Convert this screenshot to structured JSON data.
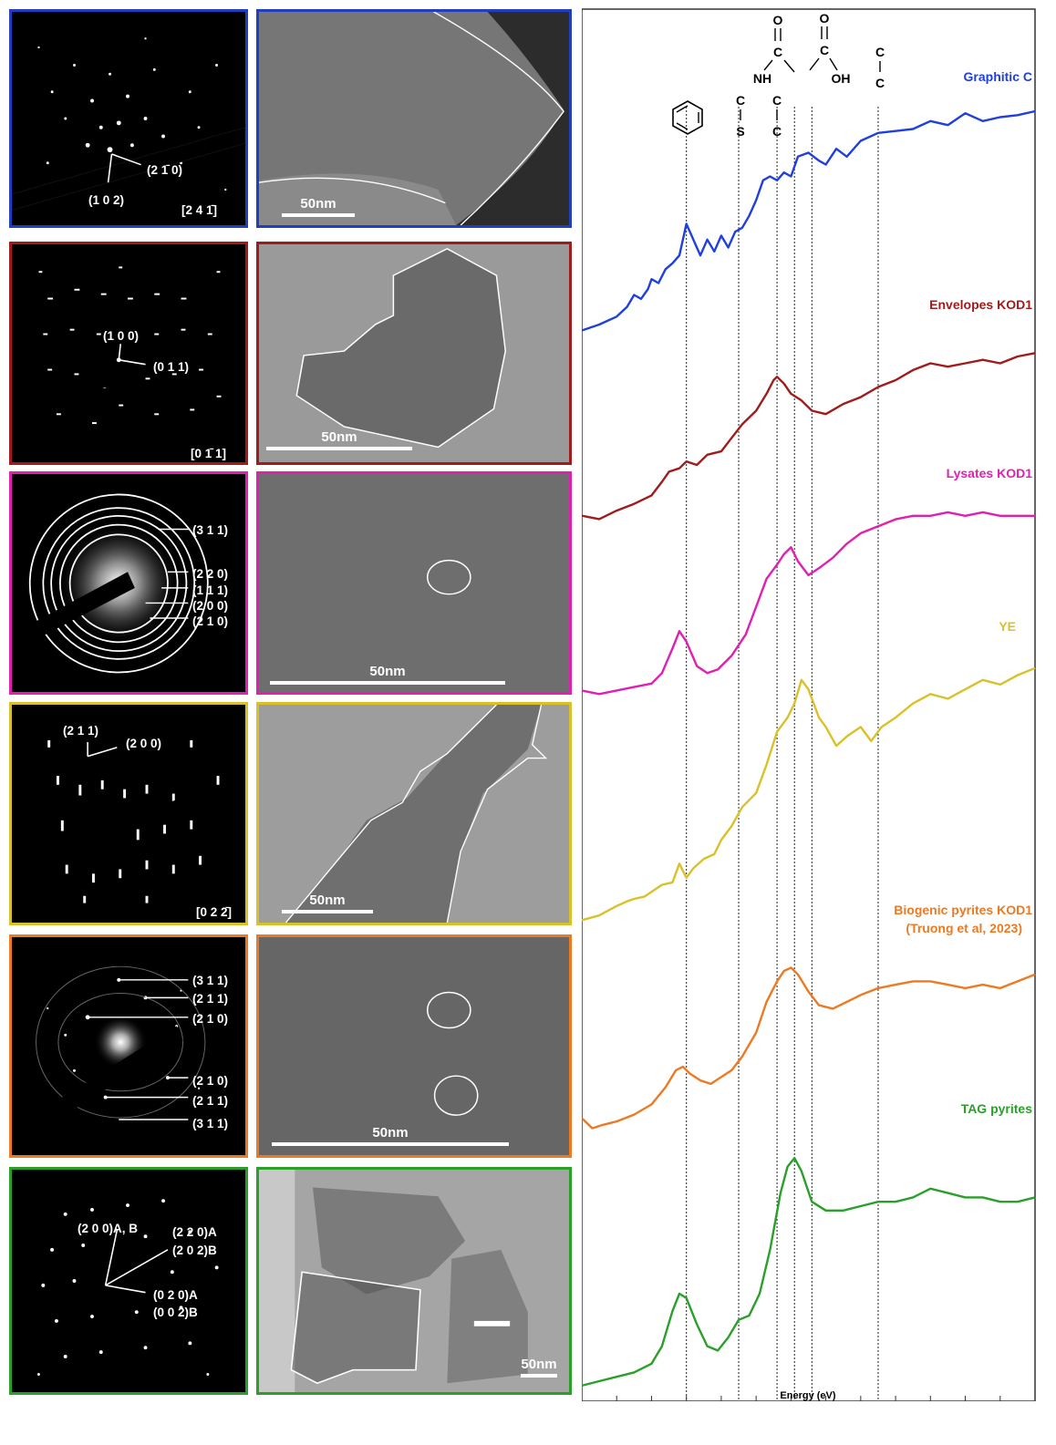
{
  "rows": [
    {
      "color": "#1f3fbf",
      "saed_labels": [
        "(2 1̄ 0)",
        "(1 0 2)"
      ],
      "zone_axis": "[2 4 1̄]",
      "scale_label": "50nm"
    },
    {
      "color": "#a01c1c",
      "saed_labels": [
        "(1 0 0)",
        "(0 1 1)"
      ],
      "zone_axis": "[0 1̄ 1]",
      "scale_label": "50nm"
    },
    {
      "color": "#e020b0",
      "saed_labels": [
        "(3 1 1)",
        "(2 2 0)",
        "(1 1 1)",
        "(2 0 0)",
        "(2 1 0)"
      ],
      "zone_axis": "",
      "scale_label": "50nm"
    },
    {
      "color": "#d9c12a",
      "saed_labels": [
        "(2 1 1)",
        "(2 0 0)"
      ],
      "zone_axis": "[0 2 2̄]",
      "scale_label": "50nm"
    },
    {
      "color": "#ec7a23",
      "saed_labels": [
        "(3 1 1)",
        "(2 1 1)",
        "(2 1 0)",
        "(2 1 0)",
        "(2 1 1)",
        "(3 1 1)"
      ],
      "zone_axis": "",
      "scale_label": "50nm"
    },
    {
      "color": "#2aa02a",
      "saed_labels": [
        "(2 0 0)A, B",
        "(2 2 0)A",
        "(2 0 2)B",
        "(0 2 0)A",
        "(0 0 2)B"
      ],
      "zone_axis": "",
      "scale_label": "50nm"
    }
  ],
  "chart_data": {
    "type": "line",
    "xlabel": "Energy (eV)",
    "xlim": [
      282,
      295
    ],
    "x_ticks": [
      "282",
      "283",
      "284",
      "285",
      "286",
      "287",
      "288",
      "289",
      "290",
      "291",
      "292",
      "293",
      "294",
      "295"
    ],
    "reference_lines_eV": [
      285.0,
      286.5,
      287.6,
      288.1,
      288.6,
      290.5
    ],
    "functional_groups": {
      "c_s": [
        "C",
        "S"
      ],
      "c_c": [
        "C",
        "C"
      ],
      "amide": [
        "O",
        "C",
        "NH"
      ],
      "carboxyl": [
        "O",
        "C",
        "OH"
      ],
      "carbonate": [
        "C",
        "C"
      ]
    },
    "series": [
      {
        "name": "Graphitic C",
        "color": "#1f3fdf",
        "x": [
          282.0,
          282.5,
          283.0,
          283.3,
          283.5,
          283.7,
          283.9,
          284.0,
          284.2,
          284.4,
          284.6,
          284.8,
          285.0,
          285.2,
          285.4,
          285.6,
          285.8,
          286.0,
          286.2,
          286.4,
          286.6,
          286.8,
          287.0,
          287.2,
          287.4,
          287.6,
          287.8,
          288.0,
          288.2,
          288.5,
          288.8,
          289.0,
          289.3,
          289.6,
          290.0,
          290.5,
          291.0,
          291.5,
          292.0,
          292.5,
          293.0,
          293.5,
          294.0,
          294.5,
          295.0
        ],
        "y": [
          0.24,
          0.27,
          0.31,
          0.36,
          0.42,
          0.4,
          0.45,
          0.5,
          0.48,
          0.55,
          0.58,
          0.62,
          0.78,
          0.7,
          0.62,
          0.7,
          0.64,
          0.72,
          0.66,
          0.74,
          0.76,
          0.82,
          0.9,
          1.0,
          1.02,
          1.0,
          1.04,
          1.02,
          1.12,
          1.14,
          1.1,
          1.08,
          1.16,
          1.12,
          1.2,
          1.24,
          1.25,
          1.26,
          1.3,
          1.28,
          1.34,
          1.3,
          1.32,
          1.33,
          1.35
        ]
      },
      {
        "name": "Envelopes KOD1",
        "color": "#a01c1c",
        "x": [
          282.0,
          282.5,
          283.0,
          283.5,
          284.0,
          284.3,
          284.5,
          284.8,
          285.0,
          285.3,
          285.6,
          286.0,
          286.3,
          286.6,
          287.0,
          287.3,
          287.5,
          287.6,
          287.8,
          288.0,
          288.3,
          288.6,
          289.0,
          289.5,
          290.0,
          290.5,
          291.0,
          291.5,
          292.0,
          292.5,
          293.0,
          293.5,
          294.0,
          294.5,
          295.0
        ],
        "y": [
          0.2,
          0.18,
          0.23,
          0.27,
          0.32,
          0.4,
          0.46,
          0.48,
          0.52,
          0.5,
          0.56,
          0.58,
          0.66,
          0.74,
          0.82,
          0.92,
          1.0,
          1.02,
          0.98,
          0.92,
          0.88,
          0.82,
          0.8,
          0.86,
          0.9,
          0.96,
          1.0,
          1.06,
          1.1,
          1.08,
          1.1,
          1.12,
          1.1,
          1.14,
          1.16
        ]
      },
      {
        "name": "Lysates KOD1",
        "color": "#e020b0",
        "x": [
          282.0,
          282.5,
          283.0,
          283.5,
          284.0,
          284.3,
          284.6,
          284.8,
          285.0,
          285.3,
          285.6,
          285.9,
          286.3,
          286.7,
          287.0,
          287.3,
          287.6,
          287.8,
          288.0,
          288.2,
          288.5,
          288.8,
          289.2,
          289.6,
          290.0,
          290.5,
          291.0,
          291.5,
          292.0,
          292.5,
          293.0,
          293.5,
          294.0,
          294.5,
          295.0
        ],
        "y": [
          0.2,
          0.18,
          0.2,
          0.22,
          0.24,
          0.3,
          0.44,
          0.54,
          0.48,
          0.34,
          0.3,
          0.32,
          0.4,
          0.52,
          0.68,
          0.84,
          0.92,
          0.98,
          1.02,
          0.94,
          0.86,
          0.9,
          0.96,
          1.04,
          1.1,
          1.14,
          1.18,
          1.2,
          1.2,
          1.22,
          1.2,
          1.22,
          1.2,
          1.2,
          1.2
        ]
      },
      {
        "name": "YE",
        "color": "#d9c12a",
        "x": [
          282.0,
          282.5,
          283.0,
          283.3,
          283.5,
          283.8,
          284.0,
          284.3,
          284.6,
          284.8,
          285.0,
          285.2,
          285.5,
          285.8,
          286.0,
          286.3,
          286.6,
          287.0,
          287.3,
          287.6,
          287.9,
          288.1,
          288.3,
          288.5,
          288.8,
          289.0,
          289.3,
          289.6,
          290.0,
          290.3,
          290.6,
          291.0,
          291.5,
          292.0,
          292.5,
          293.0,
          293.5,
          294.0,
          294.5,
          295.0
        ],
        "y": [
          0.18,
          0.2,
          0.24,
          0.26,
          0.27,
          0.28,
          0.3,
          0.33,
          0.34,
          0.42,
          0.36,
          0.4,
          0.44,
          0.46,
          0.52,
          0.58,
          0.66,
          0.72,
          0.84,
          0.98,
          1.04,
          1.1,
          1.2,
          1.16,
          1.04,
          1.0,
          0.92,
          0.96,
          1.0,
          0.94,
          1.0,
          1.04,
          1.1,
          1.14,
          1.12,
          1.16,
          1.2,
          1.18,
          1.22,
          1.25
        ]
      },
      {
        "name": "Biogenic pyrites KOD1 (Truong et al, 2023)",
        "color": "#ec7a23",
        "x": [
          282.0,
          282.3,
          282.6,
          283.0,
          283.5,
          284.0,
          284.4,
          284.7,
          284.9,
          285.1,
          285.4,
          285.7,
          286.0,
          286.3,
          286.6,
          287.0,
          287.3,
          287.6,
          287.8,
          288.0,
          288.2,
          288.5,
          288.8,
          289.2,
          289.6,
          290.0,
          290.5,
          291.0,
          291.5,
          292.0,
          292.5,
          293.0,
          293.5,
          294.0,
          294.5,
          295.0
        ],
        "y": [
          0.26,
          0.2,
          0.22,
          0.24,
          0.28,
          0.34,
          0.44,
          0.54,
          0.56,
          0.52,
          0.48,
          0.46,
          0.5,
          0.54,
          0.62,
          0.76,
          0.94,
          1.06,
          1.12,
          1.14,
          1.1,
          1.0,
          0.92,
          0.9,
          0.94,
          0.98,
          1.02,
          1.04,
          1.06,
          1.06,
          1.04,
          1.02,
          1.04,
          1.02,
          1.06,
          1.1
        ]
      },
      {
        "name": "TAG pyrites",
        "color": "#2aa02a",
        "x": [
          282.0,
          282.5,
          283.0,
          283.5,
          284.0,
          284.3,
          284.6,
          284.8,
          285.0,
          285.3,
          285.6,
          285.9,
          286.2,
          286.5,
          286.8,
          287.1,
          287.4,
          287.7,
          287.9,
          288.1,
          288.3,
          288.6,
          289.0,
          289.5,
          290.0,
          290.5,
          291.0,
          291.5,
          292.0,
          292.5,
          293.0,
          293.5,
          294.0,
          294.5,
          295.0
        ],
        "y": [
          0.18,
          0.2,
          0.22,
          0.24,
          0.28,
          0.36,
          0.52,
          0.6,
          0.58,
          0.46,
          0.36,
          0.34,
          0.4,
          0.48,
          0.5,
          0.6,
          0.8,
          1.06,
          1.18,
          1.22,
          1.16,
          1.02,
          0.98,
          0.98,
          1.0,
          1.02,
          1.02,
          1.04,
          1.08,
          1.06,
          1.04,
          1.04,
          1.02,
          1.02,
          1.04
        ]
      }
    ]
  }
}
